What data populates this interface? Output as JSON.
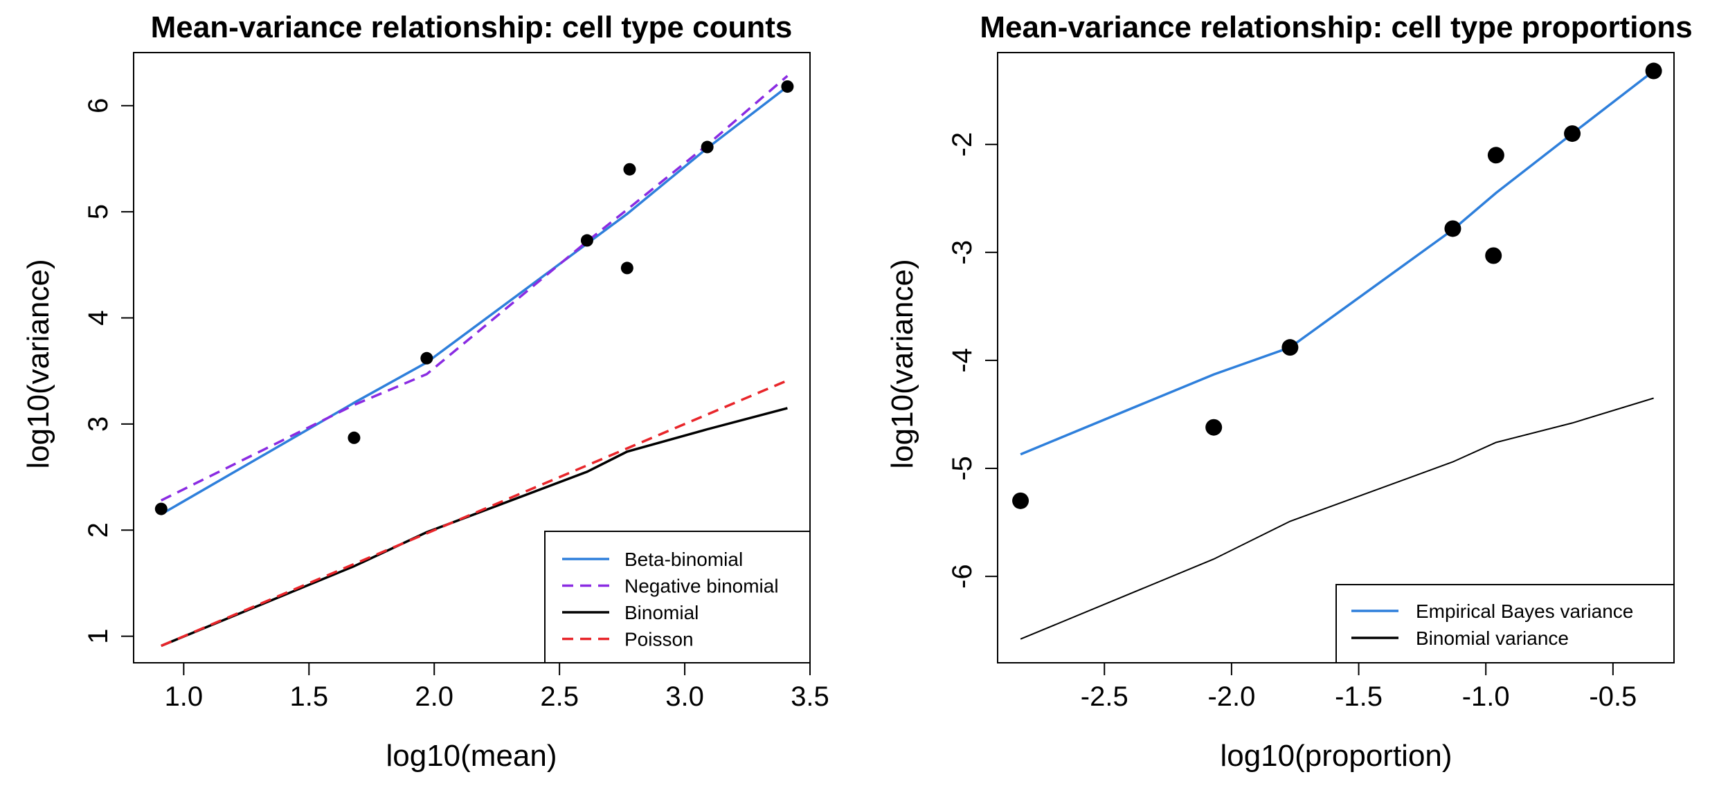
{
  "chart_data": [
    {
      "type": "line",
      "title": "Mean-variance relationship: cell type counts",
      "xlabel": "log10(mean)",
      "ylabel": "log10(variance)",
      "xlim": [
        0.8,
        3.5
      ],
      "ylim": [
        0.75,
        6.5
      ],
      "xticks": [
        1.0,
        1.5,
        2.0,
        2.5,
        3.0,
        3.5
      ],
      "xtick_labels": [
        "1.0",
        "1.5",
        "2.0",
        "2.5",
        "3.0",
        "3.5"
      ],
      "yticks": [
        1,
        2,
        3,
        4,
        5,
        6
      ],
      "ytick_labels": [
        "1",
        "2",
        "3",
        "4",
        "5",
        "6"
      ],
      "grid": false,
      "legend_position": "bottom-right",
      "points": {
        "x": [
          0.91,
          1.68,
          1.97,
          2.61,
          2.77,
          2.78,
          3.09,
          3.41
        ],
        "y": [
          2.2,
          2.87,
          3.62,
          4.73,
          4.47,
          5.4,
          5.61,
          6.18
        ],
        "radius": 9,
        "color": "#000000"
      },
      "series": [
        {
          "name": "Beta-binomial",
          "color": "#2E7FDB",
          "dash": "solid",
          "x": [
            0.91,
            1.68,
            1.97,
            2.61,
            2.77,
            3.09,
            3.41
          ],
          "y": [
            2.15,
            3.2,
            3.58,
            4.7,
            4.98,
            5.6,
            6.18
          ]
        },
        {
          "name": "Negative binomial",
          "color": "#8A2BE2",
          "dash": "dashed",
          "x": [
            0.91,
            1.68,
            1.97,
            2.61,
            2.77,
            3.09,
            3.41
          ],
          "y": [
            2.28,
            3.18,
            3.47,
            4.72,
            5.02,
            5.63,
            6.28
          ]
        },
        {
          "name": "Binomial",
          "color": "#000000",
          "dash": "solid",
          "x": [
            0.91,
            1.68,
            1.97,
            2.61,
            2.77,
            3.09,
            3.41
          ],
          "y": [
            0.91,
            1.66,
            1.98,
            2.55,
            2.74,
            2.95,
            3.15
          ]
        },
        {
          "name": "Poisson",
          "color": "#E8252A",
          "dash": "dashed",
          "x": [
            0.91,
            1.68,
            1.97,
            2.61,
            2.77,
            3.09,
            3.41
          ],
          "y": [
            0.91,
            1.68,
            1.97,
            2.61,
            2.77,
            3.09,
            3.41
          ]
        }
      ]
    },
    {
      "type": "line",
      "title": "Mean-variance relationship: cell type proportions",
      "xlabel": "log10(proportion)",
      "ylabel": "log10(variance)",
      "xlim": [
        -2.92,
        -0.26
      ],
      "ylim": [
        -6.8,
        -1.15
      ],
      "xticks": [
        -2.5,
        -2.0,
        -1.5,
        -1.0,
        -0.5
      ],
      "xtick_labels": [
        "-2.5",
        "-2.0",
        "-1.5",
        "-1.0",
        "-0.5"
      ],
      "yticks": [
        -6,
        -5,
        -4,
        -3,
        -2
      ],
      "ytick_labels": [
        "-6",
        "-5",
        "-4",
        "-3",
        "-2"
      ],
      "grid": false,
      "legend_position": "bottom-right",
      "points": {
        "x": [
          -2.83,
          -2.07,
          -1.77,
          -1.13,
          -0.97,
          -0.96,
          -0.66,
          -0.34
        ],
        "y": [
          -5.3,
          -4.62,
          -3.88,
          -2.78,
          -3.03,
          -2.1,
          -1.9,
          -1.32
        ],
        "radius": 12,
        "color": "#000000"
      },
      "series": [
        {
          "name": "Empirical Bayes variance",
          "color": "#2E7FDB",
          "dash": "solid",
          "width": 3.5,
          "x": [
            -2.83,
            -2.07,
            -1.77,
            -1.13,
            -0.96,
            -0.66,
            -0.34
          ],
          "y": [
            -4.87,
            -4.13,
            -3.88,
            -2.79,
            -2.45,
            -1.9,
            -1.32
          ]
        },
        {
          "name": "Binomial variance",
          "color": "#000000",
          "dash": "solid",
          "width": 2,
          "x": [
            -2.83,
            -2.07,
            -1.77,
            -1.13,
            -0.96,
            -0.66,
            -0.34
          ],
          "y": [
            -6.58,
            -5.84,
            -5.49,
            -4.94,
            -4.76,
            -4.58,
            -4.35
          ]
        }
      ]
    }
  ]
}
